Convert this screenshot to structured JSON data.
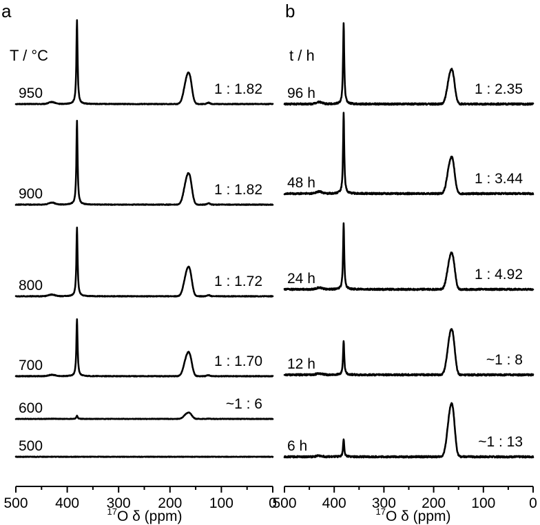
{
  "chart_data": [
    {
      "type": "line",
      "panel_label": "a",
      "variable_label": "T / °C",
      "xlabel_sup": "17",
      "xlabel_main": "O δ (ppm)",
      "xlim": [
        500,
        0
      ],
      "x_inverted": true,
      "xticks": [
        500,
        400,
        300,
        200,
        100,
        0
      ],
      "ylabel": "",
      "grid": false,
      "peaks_ppm": [
        381,
        165
      ],
      "minor_peaks_ppm": [
        430,
        125
      ],
      "series": [
        {
          "label": "950",
          "ratio": "1 : 1.82",
          "peak_381_height": 1.0,
          "peak_165_height": 0.3,
          "noise": 0.004
        },
        {
          "label": "900",
          "ratio": "1 : 1.82",
          "peak_381_height": 1.0,
          "peak_165_height": 0.3,
          "noise": 0.004
        },
        {
          "label": "800",
          "ratio": "1 : 1.72",
          "peak_381_height": 0.82,
          "peak_165_height": 0.28,
          "noise": 0.004
        },
        {
          "label": "700",
          "ratio": "1 : 1.70",
          "peak_381_height": 0.68,
          "peak_165_height": 0.23,
          "noise": 0.004
        },
        {
          "label": "600",
          "ratio": "~1 : 6",
          "peak_381_height": 0.04,
          "peak_165_height": 0.06,
          "noise": 0.003
        },
        {
          "label": "500",
          "ratio": "",
          "peak_381_height": 0.0,
          "peak_165_height": 0.0,
          "noise": 0.003
        }
      ]
    },
    {
      "type": "line",
      "panel_label": "b",
      "variable_label": "t / h",
      "xlabel_sup": "17",
      "xlabel_main": "O δ (ppm)",
      "xlim": [
        500,
        0
      ],
      "x_inverted": true,
      "xticks": [
        500,
        400,
        300,
        200,
        100,
        0
      ],
      "ylabel": "",
      "grid": false,
      "peaks_ppm": [
        381,
        165
      ],
      "minor_peaks_ppm": [
        430
      ],
      "series": [
        {
          "label": "96 h",
          "ratio": "1 : 2.35",
          "peak_381_height": 1.0,
          "peak_165_height": 0.34,
          "noise": 0.01
        },
        {
          "label": "48 h",
          "ratio": "1 : 3.44",
          "peak_381_height": 1.0,
          "peak_165_height": 0.36,
          "noise": 0.01
        },
        {
          "label": "24 h",
          "ratio": "1 : 4.92",
          "peak_381_height": 0.82,
          "peak_165_height": 0.36,
          "noise": 0.01
        },
        {
          "label": "12 h",
          "ratio": "~1 : 8",
          "peak_381_height": 0.42,
          "peak_165_height": 0.45,
          "noise": 0.01
        },
        {
          "label": "6 h",
          "ratio": "~1 : 13",
          "peak_381_height": 0.22,
          "peak_165_height": 0.52,
          "noise": 0.01
        }
      ]
    }
  ]
}
